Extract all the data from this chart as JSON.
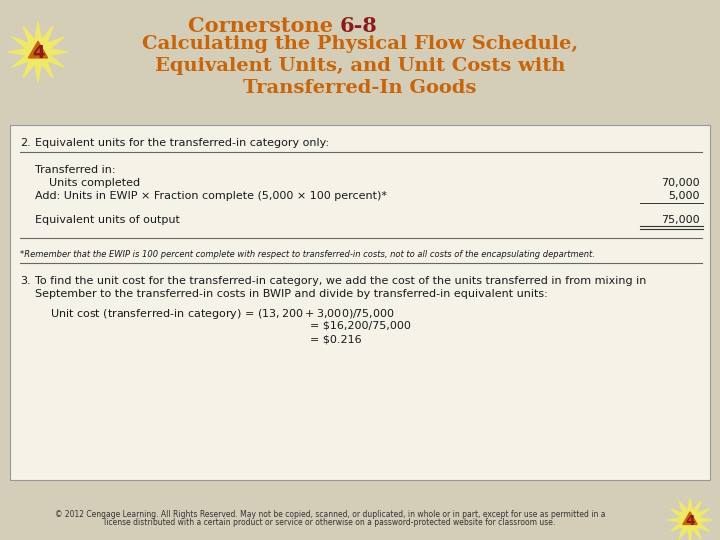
{
  "bg_color": "#d4cdb8",
  "white_box_color": "#f5f2e8",
  "title_line1_a": "Cornerstone ",
  "title_line1_b": "6-8",
  "title_line2": "Calculating the Physical Flow Schedule,",
  "title_line3": "Equivalent Units, and Unit Costs with",
  "title_line4": "Transferred-In Goods",
  "title_orange": "#c8650a",
  "title_darkred": "#8b1a1a",
  "section2_num": "2.",
  "section2_text": "Equivalent units for the transferred-in category only:",
  "transferred_in_label": "Transferred in:",
  "units_completed_label": "    Units completed",
  "units_completed_value": "70,000",
  "add_units_label": "Add: Units in EWIP × Fraction complete (5,000 × 100 percent)*",
  "add_units_value": "5,000",
  "equiv_units_label": "Equivalent units of output",
  "equiv_units_value": "75,000",
  "footnote": "*Remember that the EWIP is 100 percent complete with respect to transferred-in costs, not to all costs of the encapsulating department.",
  "section3_num": "3.",
  "section3_text1": "To find the unit cost for the transferred-in category, we add the cost of the units transferred in from mixing in",
  "section3_text2": "September to the transferred-in costs in BWIP and divide by transferred-in equivalent units:",
  "unit_cost_line1": "Unit cost (transferred-in category) = ($13,200 + $3,000)/75,000",
  "unit_cost_line2": "= $16,200/75,000",
  "unit_cost_line3": "= $0.216",
  "copyright1": "© 2012 Cengage Learning. All Rights Reserved. May not be copied, scanned, or duplicated, in whole or in part, except for use as permitted in a",
  "copyright2": "license distributed with a certain product or service or otherwise on a password-protected website for classroom use.",
  "text_color": "#1a1a1a"
}
